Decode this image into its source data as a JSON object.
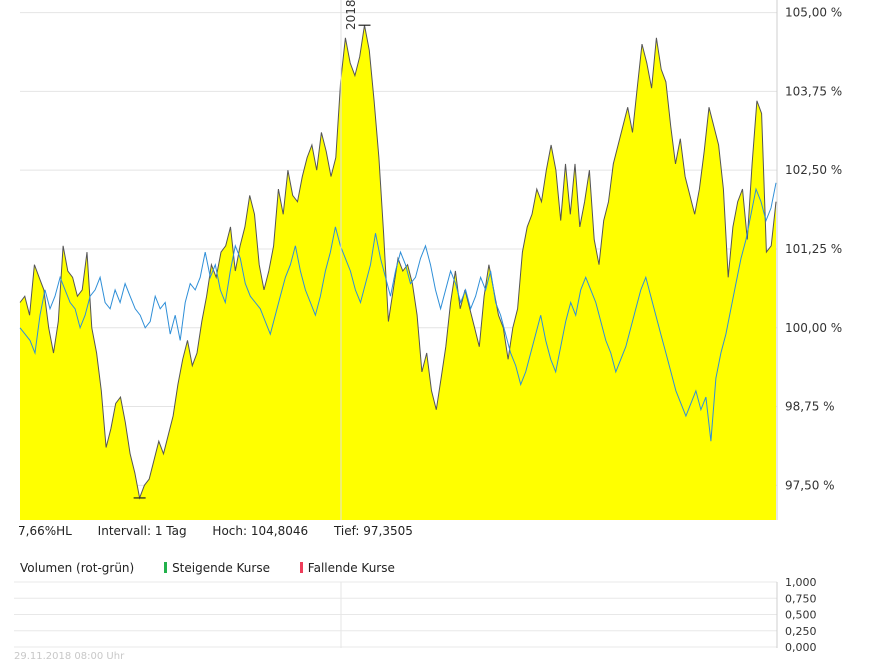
{
  "chart_data": {
    "type": "area",
    "x_marker_label": "2018",
    "y_axis": {
      "ticks": [
        97.5,
        98.75,
        100.0,
        101.25,
        102.5,
        103.75,
        105.0
      ],
      "tick_labels": [
        "97,50 %",
        "98,75 %",
        "100,00 %",
        "101,25 %",
        "102,50 %",
        "103,75 %",
        "105,00 %"
      ],
      "ylim": [
        96.95,
        105.2
      ],
      "position": "right"
    },
    "grid": true,
    "series": [
      {
        "values": [
          100.4,
          100.5,
          100.2,
          101.0,
          100.8,
          100.6,
          100.0,
          99.6,
          100.1,
          101.3,
          100.9,
          100.8,
          100.5,
          100.6,
          101.2,
          100.0,
          99.6,
          99.0,
          98.1,
          98.4,
          98.8,
          98.9,
          98.5,
          98.0,
          97.7,
          97.3,
          97.5,
          97.6,
          97.9,
          98.2,
          98.0,
          98.3,
          98.6,
          99.1,
          99.5,
          99.8,
          99.4,
          99.6,
          100.1,
          100.5,
          101.0,
          100.8,
          101.2,
          101.3,
          101.6,
          100.9,
          101.3,
          101.6,
          102.1,
          101.8,
          101.0,
          100.6,
          100.9,
          101.3,
          102.2,
          101.8,
          102.5,
          102.1,
          102.0,
          102.4,
          102.7,
          102.9,
          102.5,
          103.1,
          102.8,
          102.4,
          102.7,
          103.9,
          104.6,
          104.2,
          104.0,
          104.3,
          104.8,
          104.4,
          103.6,
          102.7,
          101.5,
          100.1,
          100.6,
          101.1,
          100.9,
          101.0,
          100.7,
          100.2,
          99.3,
          99.6,
          99.0,
          98.7,
          99.2,
          99.7,
          100.4,
          100.9,
          100.3,
          100.6,
          100.3,
          100.0,
          99.7,
          100.5,
          101.0,
          100.6,
          100.2,
          100.0,
          99.5,
          100.0,
          100.3,
          101.2,
          101.6,
          101.8,
          102.2,
          102.0,
          102.5,
          102.9,
          102.5,
          101.7,
          102.6,
          101.8,
          102.6,
          101.6,
          102.0,
          102.5,
          101.4,
          101.0,
          101.7,
          102.0,
          102.6,
          102.9,
          103.2,
          103.5,
          103.1,
          103.8,
          104.5,
          104.2,
          103.8,
          104.6,
          104.1,
          103.9,
          103.2,
          102.6,
          103.0,
          102.4,
          102.1,
          101.8,
          102.2,
          102.8,
          103.5,
          103.2,
          102.9,
          102.2,
          100.8,
          101.6,
          102.0,
          102.2,
          101.4,
          102.6,
          103.6,
          103.4,
          101.2,
          101.3,
          102.0
        ],
        "color": "#ffff00",
        "line_color": "#555555"
      },
      {
        "values": [
          100.0,
          99.9,
          99.8,
          99.6,
          100.2,
          100.6,
          100.3,
          100.5,
          100.8,
          100.6,
          100.4,
          100.3,
          100.0,
          100.2,
          100.5,
          100.6,
          100.8,
          100.4,
          100.3,
          100.6,
          100.4,
          100.7,
          100.5,
          100.3,
          100.2,
          100.0,
          100.1,
          100.5,
          100.3,
          100.4,
          99.9,
          100.2,
          99.8,
          100.4,
          100.7,
          100.6,
          100.8,
          101.2,
          100.8,
          101.0,
          100.6,
          100.4,
          100.9,
          101.3,
          101.1,
          100.7,
          100.5,
          100.4,
          100.3,
          100.1,
          99.9,
          100.2,
          100.5,
          100.8,
          101.0,
          101.3,
          100.9,
          100.6,
          100.4,
          100.2,
          100.5,
          100.9,
          101.2,
          101.6,
          101.3,
          101.1,
          100.9,
          100.6,
          100.4,
          100.7,
          101.0,
          101.5,
          101.1,
          100.8,
          100.5,
          100.9,
          101.2,
          101.0,
          100.7,
          100.8,
          101.1,
          101.3,
          101.0,
          100.6,
          100.3,
          100.6,
          100.9,
          100.7,
          100.4,
          100.6,
          100.3,
          100.5,
          100.8,
          100.6,
          100.9,
          100.4,
          100.2,
          99.9,
          99.6,
          99.4,
          99.1,
          99.3,
          99.6,
          99.9,
          100.2,
          99.8,
          99.5,
          99.3,
          99.7,
          100.1,
          100.4,
          100.2,
          100.6,
          100.8,
          100.6,
          100.4,
          100.1,
          99.8,
          99.6,
          99.3,
          99.5,
          99.7,
          100.0,
          100.3,
          100.6,
          100.8,
          100.5,
          100.2,
          99.9,
          99.6,
          99.3,
          99.0,
          98.8,
          98.6,
          98.8,
          99.0,
          98.7,
          98.9,
          98.2,
          99.2,
          99.6,
          99.9,
          100.3,
          100.7,
          101.1,
          101.4,
          101.8,
          102.2,
          102.0,
          101.7,
          101.9,
          102.3
        ]
      }
    ],
    "annotations": {
      "high_marker_index": 72,
      "low_marker_index": 25
    }
  },
  "stats": {
    "range": "7,66%HL",
    "interval": "Intervall: 1 Tag",
    "high": "Hoch: 104,8046",
    "low": "Tief: 97,3505"
  },
  "volume": {
    "label": "Volumen (rot-grün)",
    "rising": "Steigende Kurse",
    "falling": "Fallende Kurse",
    "rising_color": "#22b14c",
    "falling_color": "#ee3d5a",
    "ticks": [
      1.0,
      0.75,
      0.5,
      0.25,
      0.0
    ],
    "tick_labels": [
      "1,000",
      "0,750",
      "0,500",
      "0,250",
      "0,000"
    ]
  },
  "footer": {
    "timestamp": "29.11.2018 08:00 Uhr"
  }
}
